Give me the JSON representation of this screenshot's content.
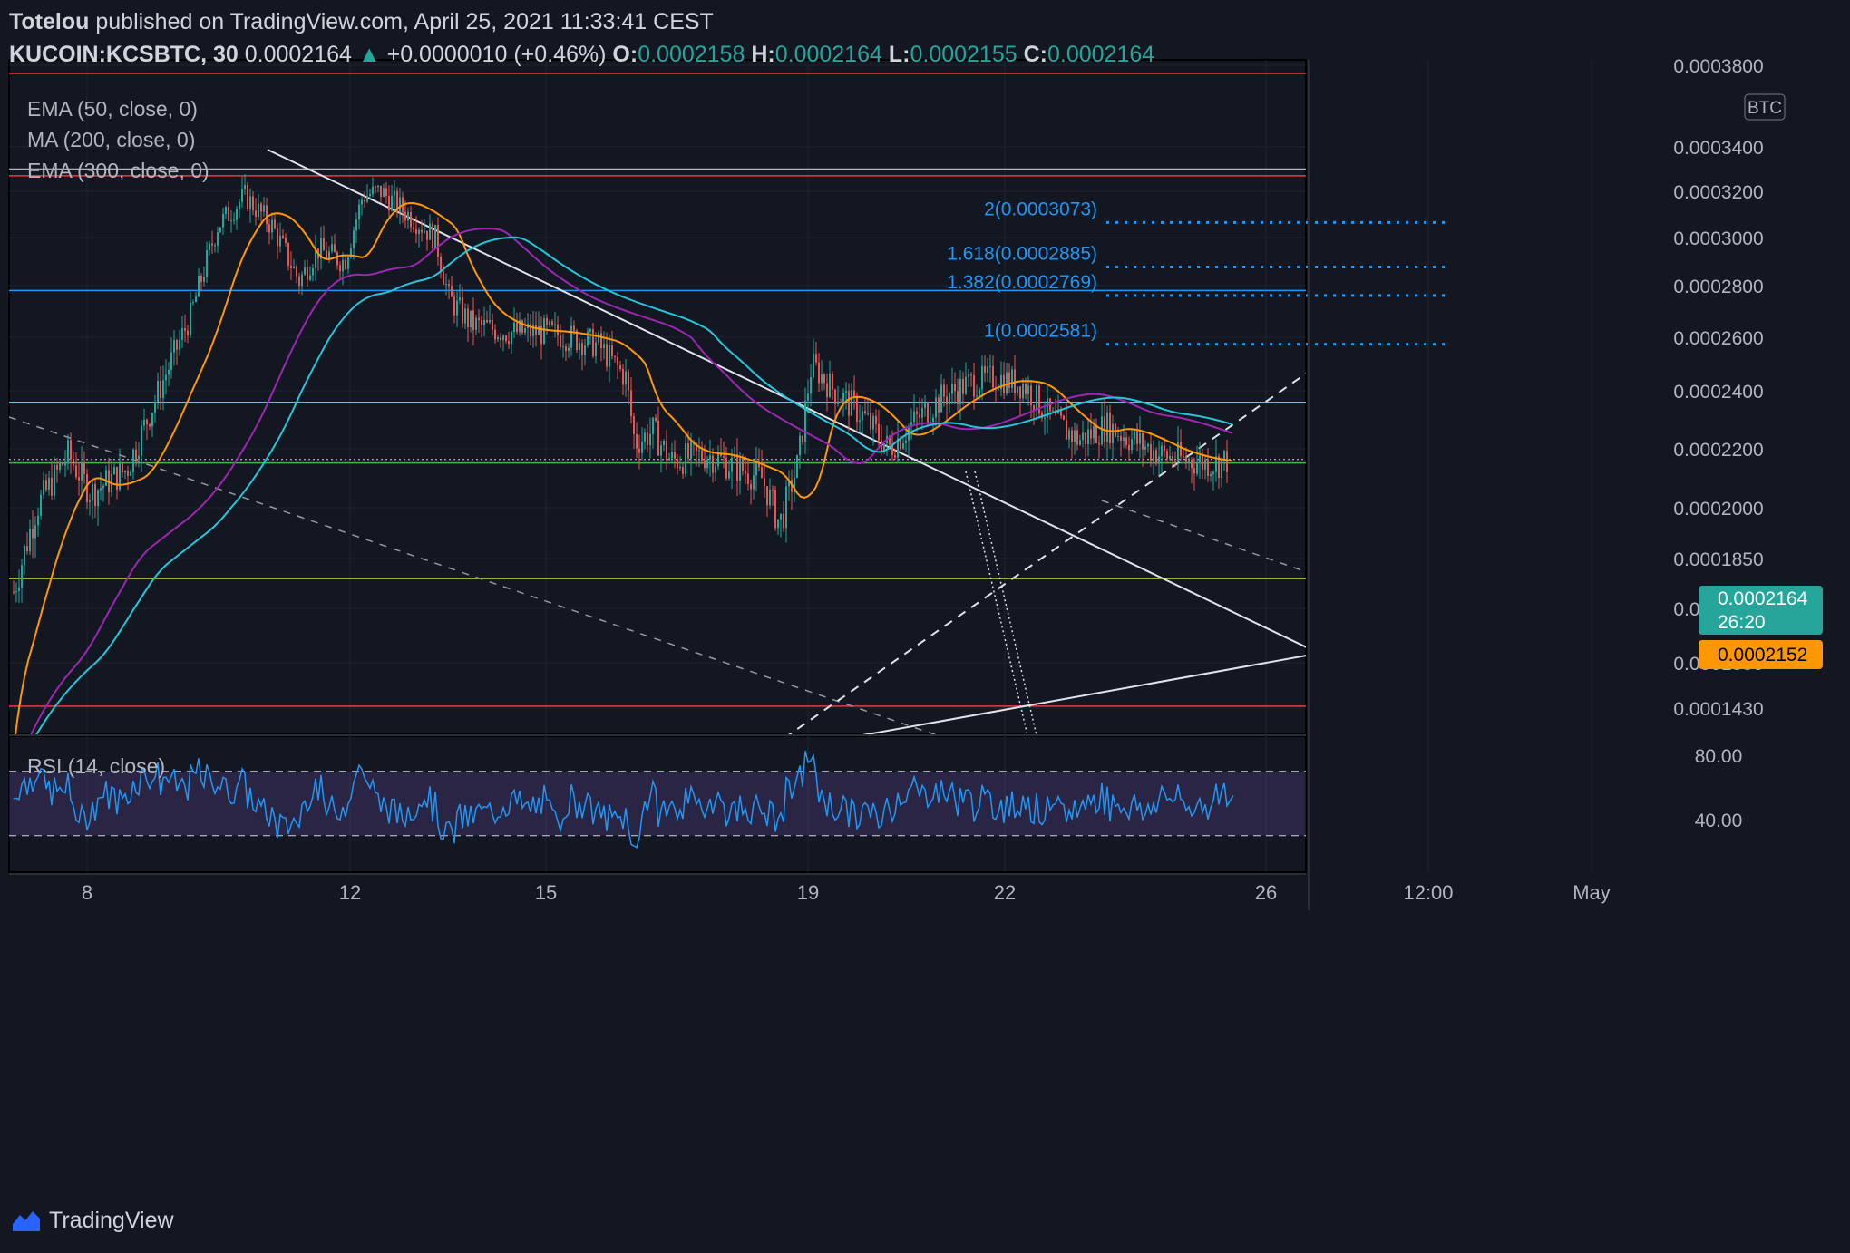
{
  "header": {
    "author": "Totelou",
    "published_text": "published on TradingView.com, April 25, 2021 11:33:41 CEST",
    "symbol": "KUCOIN:KCSBTC, 30",
    "last": "0.0002164",
    "change": "+0.0000010 (+0.46%)",
    "open_label": "O:",
    "open": "0.0002158",
    "high_label": "H:",
    "high": "0.0002164",
    "low_label": "L:",
    "low": "0.0002155",
    "close_label": "C:",
    "close": "0.0002164"
  },
  "legend": [
    "EMA (50, close, 0)",
    "MA (200, close, 0)",
    "EMA (300, close, 0)"
  ],
  "currency_badge": "BTC",
  "price_axis": {
    "ticks": [
      {
        "label": "0.0003800",
        "v": 0.00038
      },
      {
        "label": "0.0003400",
        "v": 0.00034
      },
      {
        "label": "0.0003200",
        "v": 0.00032
      },
      {
        "label": "0.0003000",
        "v": 0.0003
      },
      {
        "label": "0.0002800",
        "v": 0.00028
      },
      {
        "label": "0.0002600",
        "v": 0.00026
      },
      {
        "label": "0.0002400",
        "v": 0.00024
      },
      {
        "label": "0.0002200",
        "v": 0.00022
      },
      {
        "label": "0.0002000",
        "v": 0.0002
      },
      {
        "label": "0.0001850",
        "v": 0.000185
      },
      {
        "label": "0.0001700",
        "v": 0.00017
      },
      {
        "label": "0.0001550",
        "v": 0.000155
      },
      {
        "label": "0.0001430",
        "v": 0.000143
      }
    ],
    "last_price_tag": "0.0002164",
    "countdown": "26:20",
    "ema_tag": "0.0002152"
  },
  "time_axis": [
    "8",
    "12",
    "15",
    "19",
    "22",
    "26",
    "12:00",
    "May"
  ],
  "fib_labels": [
    {
      "label": "2(0.0003073)",
      "v": 0.0003073
    },
    {
      "label": "1.618(0.0002885)",
      "v": 0.0002885
    },
    {
      "label": "1.382(0.0002769)",
      "v": 0.0002769
    },
    {
      "label": "1(0.0002581)",
      "v": 0.0002581
    }
  ],
  "horizontal_levels": [
    {
      "v": 0.000376,
      "color": "#f23645"
    },
    {
      "v": 0.00033,
      "color": "#b2b5be"
    },
    {
      "v": 0.000327,
      "color": "#f23645"
    },
    {
      "v": 0.0002781,
      "color": "#2196f3"
    },
    {
      "v": 0.000236,
      "color": "#4dd0e1"
    },
    {
      "v": 0.0002152,
      "color": "#4caf50"
    },
    {
      "v": 0.000179,
      "color": "#cddc39"
    },
    {
      "v": 0.0001435,
      "color": "#f23645"
    }
  ],
  "rsi": {
    "title": "RSI (14, close)",
    "ticks": [
      {
        "label": "80.00",
        "v": 80
      },
      {
        "label": "40.00",
        "v": 40
      }
    ],
    "upper": 70,
    "lower": 30,
    "last": 55
  },
  "colors": {
    "background": "#131722",
    "up": "#26a69a",
    "down": "#ef5350",
    "ema50": "#ff9800",
    "ma200": "#9c27b0",
    "ema300": "#26c6da",
    "rsi": "#2196f3",
    "fib": "#2196f3"
  },
  "footer": {
    "brand": "TradingView"
  }
}
